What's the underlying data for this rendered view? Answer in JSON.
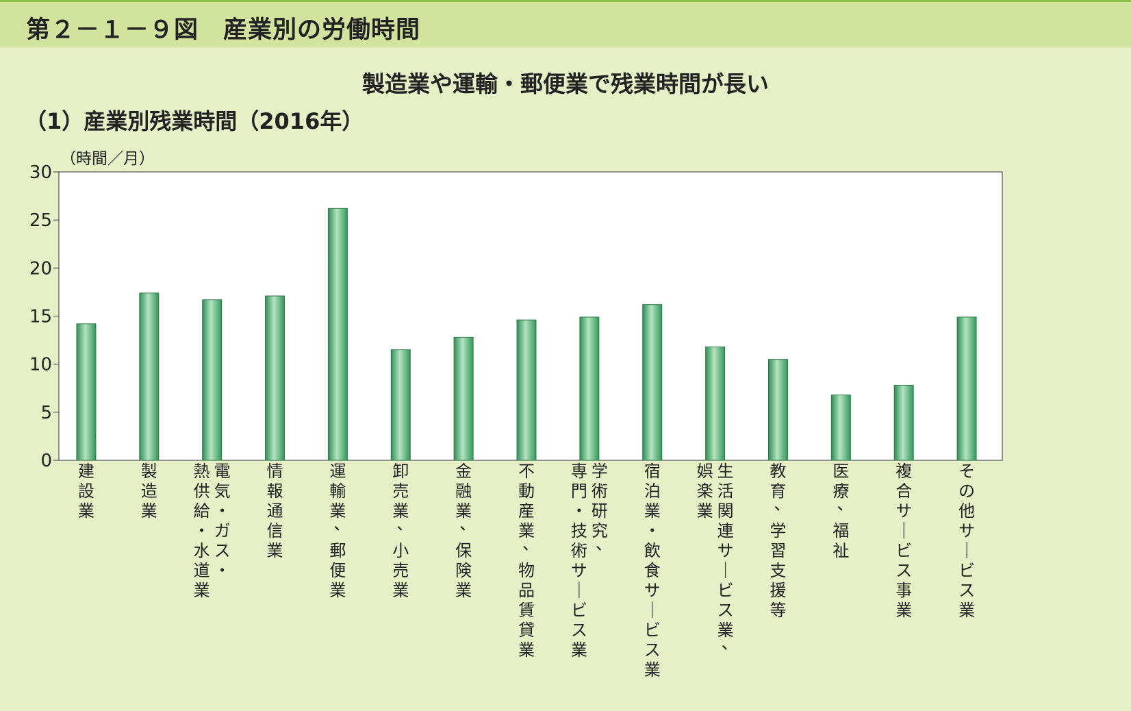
{
  "figure": {
    "number": "第２－１－９図",
    "title": "産業別の労働時間"
  },
  "headline": "製造業や運輸・郵便業で残業時間が長い",
  "subtitle": "（1）産業別残業時間（2016年）",
  "colors": {
    "header_band": "#d2e39d",
    "background": "#e6efc6",
    "plot_bg": "#ffffff",
    "bar_edge": "#2d7a4a",
    "bar_mid": "#a8dcb8",
    "bar_dark": "#3aa068"
  },
  "chart_data": {
    "type": "bar",
    "ylabel": "（時間／月）",
    "ylim": [
      0,
      30
    ],
    "yticks": [
      0,
      5,
      10,
      15,
      20,
      25,
      30
    ],
    "grid": false,
    "categories": [
      [
        "建設業"
      ],
      [
        "製造業"
      ],
      [
        "電気・ガス・",
        "熱供給・水道業"
      ],
      [
        "情報通信業"
      ],
      [
        "運輸業、郵便業"
      ],
      [
        "卸売業、小売業"
      ],
      [
        "金融業、保険業"
      ],
      [
        "不動産業、物品賃貸業"
      ],
      [
        "学術研究、",
        "専門・技術サービス業"
      ],
      [
        "宿泊業・飲食サービス業"
      ],
      [
        "生活関連サービス業、",
        "娯楽業"
      ],
      [
        "教育、学習支援等"
      ],
      [
        "医療、福祉"
      ],
      [
        "複合サービス事業"
      ],
      [
        "その他サービス業"
      ]
    ],
    "values": [
      14.2,
      17.4,
      16.7,
      17.1,
      26.2,
      11.5,
      12.8,
      14.6,
      14.9,
      16.2,
      11.8,
      10.5,
      6.8,
      7.8,
      14.9
    ]
  }
}
